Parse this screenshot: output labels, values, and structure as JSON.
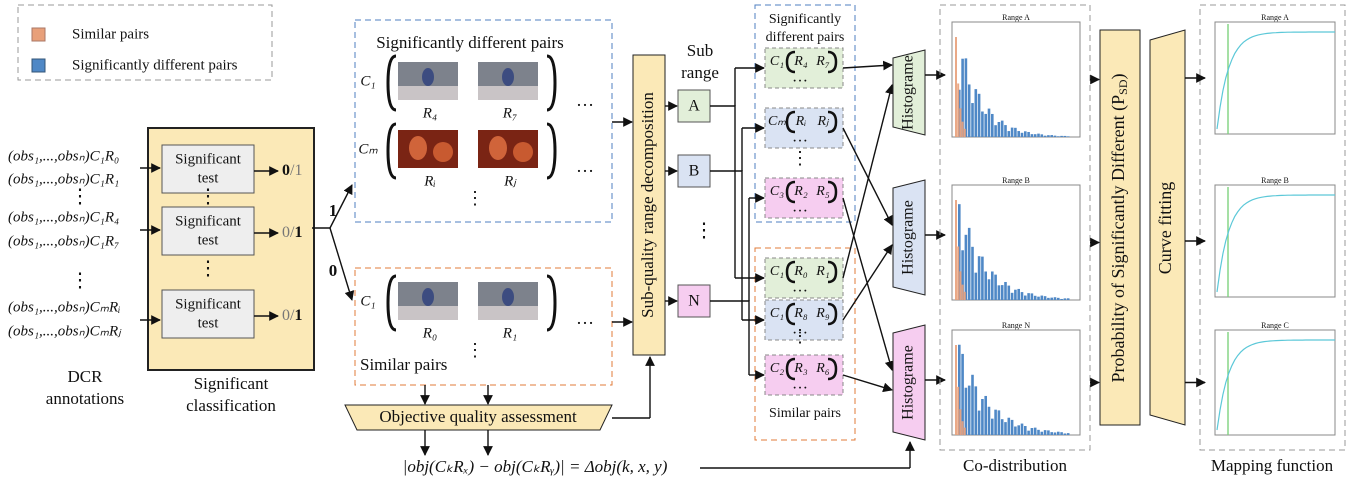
{
  "legend": {
    "similar": "Similar pairs",
    "different": "Significantly different pairs"
  },
  "annotations": {
    "rows": [
      "(obs₁,...,obsₙ)C₁R₀",
      "(obs₁,...,obsₙ)C₁R₁",
      "(obs₁,...,obsₙ)C₁R₄",
      "(obs₁,...,obsₙ)C₁R₇",
      "(obs₁,...,obsₙ)CₘRᵢ",
      "(obs₁,...,obsₙ)CₘRⱼ"
    ],
    "label_lines": [
      "DCR",
      "annotations"
    ]
  },
  "classification": {
    "test_lines": [
      "Significant",
      "test"
    ],
    "outputs": [
      [
        "0",
        "/1"
      ],
      [
        "0/",
        "1"
      ],
      [
        "0/",
        "1"
      ]
    ],
    "label_lines": [
      "Significant",
      "classification"
    ]
  },
  "branches": [
    "1",
    "0"
  ],
  "dots": {
    "h": "…",
    "v": "⋮"
  },
  "diff_box": {
    "title": "Significantly different pairs",
    "rows": [
      {
        "c": "C₁",
        "r": [
          "R₄",
          "R₇"
        ]
      },
      {
        "c": "Cₘ",
        "r": [
          "Rᵢ",
          "Rⱼ"
        ]
      }
    ]
  },
  "sim_box": {
    "title": "Similar pairs",
    "rows": [
      {
        "c": "C₁",
        "r": [
          "R₀",
          "R₁"
        ]
      }
    ]
  },
  "objective": "Objective quality assessment",
  "formula": "|obj(CₖRₓ) − obj(CₖRᵧ)| = Δobj(k, x, y)",
  "decomposition": "Sub-quality range decomposition",
  "subrange": {
    "label_lines": [
      "Sub",
      "range"
    ],
    "ranges": [
      "A",
      "B",
      "N"
    ]
  },
  "groups": {
    "diff_title_lines": [
      "Significantly",
      "different pairs"
    ],
    "diff": [
      {
        "c": "C₁",
        "r": [
          "R₄",
          "R₇"
        ]
      },
      {
        "c": "Cₘ",
        "r": [
          "Rᵢ",
          "Rⱼ"
        ]
      },
      {
        "c": "C₃",
        "r": [
          "R₂",
          "R₅"
        ]
      }
    ],
    "sim": [
      {
        "c": "C₁",
        "r": [
          "R₀",
          "R₁"
        ]
      },
      {
        "c": "C₁",
        "r": [
          "R₈",
          "R₉"
        ]
      },
      {
        "c": "C₂",
        "r": [
          "R₃",
          "R₆"
        ]
      }
    ],
    "sim_title": "Similar pairs"
  },
  "histogram": "Histograme",
  "codistribution": {
    "titles": [
      "Range A",
      "Range B",
      "Range N"
    ],
    "label": "Co-distribution"
  },
  "probability": [
    "Probability of Significantly Different (P",
    "SD",
    ")"
  ],
  "curve_fitting": "Curve fitting",
  "mapping": {
    "titles": [
      "Range A",
      "Range B",
      "Range C"
    ],
    "label": "Mapping function"
  }
}
